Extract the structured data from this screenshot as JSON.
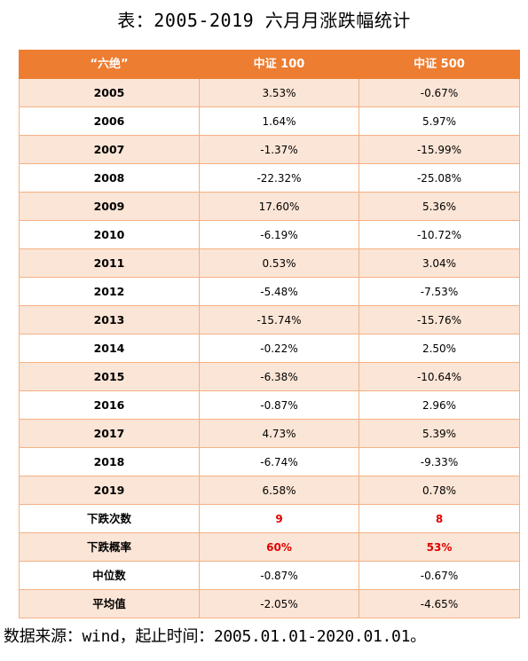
{
  "title": "表：2005-2019 六月月涨跌幅统计",
  "table": {
    "headers": [
      "“六绝”",
      "中证 100",
      "中证 500"
    ],
    "rows": [
      {
        "label": "2005",
        "csi100": "3.53%",
        "csi500": "-0.67%"
      },
      {
        "label": "2006",
        "csi100": "1.64%",
        "csi500": "5.97%"
      },
      {
        "label": "2007",
        "csi100": "-1.37%",
        "csi500": "-15.99%"
      },
      {
        "label": "2008",
        "csi100": "-22.32%",
        "csi500": "-25.08%"
      },
      {
        "label": "2009",
        "csi100": "17.60%",
        "csi500": "5.36%"
      },
      {
        "label": "2010",
        "csi100": "-6.19%",
        "csi500": "-10.72%"
      },
      {
        "label": "2011",
        "csi100": "0.53%",
        "csi500": "3.04%"
      },
      {
        "label": "2012",
        "csi100": "-5.48%",
        "csi500": "-7.53%"
      },
      {
        "label": "2013",
        "csi100": "-15.74%",
        "csi500": "-15.76%"
      },
      {
        "label": "2014",
        "csi100": "-0.22%",
        "csi500": "2.50%"
      },
      {
        "label": "2015",
        "csi100": "-6.38%",
        "csi500": "-10.64%"
      },
      {
        "label": "2016",
        "csi100": "-0.87%",
        "csi500": "2.96%"
      },
      {
        "label": "2017",
        "csi100": "4.73%",
        "csi500": "5.39%"
      },
      {
        "label": "2018",
        "csi100": "-6.74%",
        "csi500": "-9.33%"
      },
      {
        "label": "2019",
        "csi100": "6.58%",
        "csi500": "0.78%"
      },
      {
        "label": "下跌次数",
        "csi100": "9",
        "csi500": "8",
        "highlight": true
      },
      {
        "label": "下跌概率",
        "csi100": "60%",
        "csi500": "53%",
        "highlight": true
      },
      {
        "label": "中位数",
        "csi100": "-0.87%",
        "csi500": "-0.67%"
      },
      {
        "label": "平均值",
        "csi100": "-2.05%",
        "csi500": "-4.65%"
      }
    ]
  },
  "source": "数据来源：wind，起止时间：2005.01.01-2020.01.01。",
  "colors": {
    "header_bg": "#ed7d31",
    "header_text": "#ffffff",
    "band_bg": "#fbe5d6",
    "border": "#f4b183",
    "highlight_text": "#e00000"
  }
}
